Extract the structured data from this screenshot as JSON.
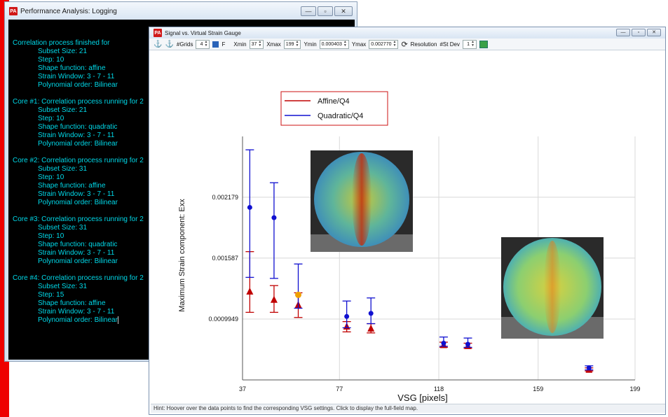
{
  "log_window": {
    "title": "Performance Analysis: Logging",
    "icon": "PA",
    "controls": [
      "minimize-icon",
      "maximize-icon",
      "close-icon"
    ],
    "blocks": [
      {
        "header": "Correlation process finished for",
        "lines": [
          "Subset Size: 21",
          "Step: 10",
          "Shape function: affine",
          "Strain Window: 3 - 7 - 11",
          "Polynomial order: Bilinear"
        ]
      },
      {
        "header": "Core #1: Correlation process running for 2",
        "lines": [
          "Subset Size: 21",
          "Step: 10",
          "Shape function: quadratic",
          "Strain Window: 3 - 7 - 11",
          "Polynomial order: Bilinear"
        ]
      },
      {
        "header": "Core #2: Correlation process running for 2",
        "lines": [
          "Subset Size: 31",
          "Step: 10",
          "Shape function: affine",
          "Strain Window: 3 - 7 - 11",
          "Polynomial order: Bilinear"
        ]
      },
      {
        "header": "Core #3: Correlation process running for 2",
        "lines": [
          "Subset Size: 31",
          "Step: 10",
          "Shape function: quadratic",
          "Strain Window: 3 - 7 - 11",
          "Polynomial order: Bilinear"
        ]
      },
      {
        "header": "Core #4: Correlation process running for 2",
        "lines": [
          "Subset Size: 31",
          "Step: 15",
          "Shape function: affine",
          "Strain Window: 3 - 7 - 11",
          "Polynomial order: Bilinear"
        ]
      }
    ]
  },
  "chart_window": {
    "title": "Signal vs. Virtual Strain Gauge",
    "icon": "PA",
    "toolbar": {
      "grids_label": "#Grids",
      "grids_value": "4",
      "f_label": "F",
      "xmin_label": "Xmin",
      "xmin_value": "37",
      "xmax_label": "Xmax",
      "xmax_value": "199",
      "ymin_label": "Ymin",
      "ymin_value": "0.000403",
      "ymax_label": "Ymax",
      "ymax_value": "0.002770",
      "resolution_label": "Resolution",
      "stdev_label": "#St Dev",
      "stdev_value": "1"
    },
    "hint": "Hint: Hoover over the data points to find the corresponding VSG settings. Click to display the full-field map."
  },
  "chart_data": {
    "type": "scatter",
    "xlabel": "VSG [pixels]",
    "ylabel": "Maximum Strain component: Exx",
    "xlim": [
      37,
      199
    ],
    "ylim": [
      0.000403,
      0.00277
    ],
    "x_ticks": [
      37,
      77,
      118,
      159,
      199
    ],
    "y_ticks": [
      0.0009949,
      0.001587,
      0.002179
    ],
    "y_tick_labels": [
      "0.0009949",
      "0.001587",
      "0.002179"
    ],
    "grid": true,
    "legend_position": "top-left",
    "series": [
      {
        "name": "Affine/Q4",
        "color": "#c00000",
        "marker": "triangle",
        "points": [
          {
            "x": 40,
            "y": 0.00126,
            "lo": 0.00106,
            "hi": 0.00165
          },
          {
            "x": 50,
            "y": 0.00118,
            "lo": 0.00106,
            "hi": 0.00132
          },
          {
            "x": 60,
            "y": 0.00113,
            "lo": 0.00101,
            "hi": 0.00125
          },
          {
            "x": 80,
            "y": 0.00092,
            "lo": 0.00087,
            "hi": 0.00097
          },
          {
            "x": 90,
            "y": 0.0009,
            "lo": 0.00086,
            "hi": 0.00095
          },
          {
            "x": 120,
            "y": 0.00074,
            "lo": 0.00072,
            "hi": 0.00077
          },
          {
            "x": 130,
            "y": 0.00073,
            "lo": 0.00071,
            "hi": 0.00076
          },
          {
            "x": 180,
            "y": 0.0005,
            "lo": 0.00049,
            "hi": 0.00052
          }
        ]
      },
      {
        "name": "Quadratic/Q4",
        "color": "#1010d0",
        "marker": "circle",
        "points": [
          {
            "x": 40,
            "y": 0.00208,
            "lo": 0.0014,
            "hi": 0.00264
          },
          {
            "x": 50,
            "y": 0.00198,
            "lo": 0.00139,
            "hi": 0.00232
          },
          {
            "x": 60,
            "y": 0.00123,
            "lo": 0.0011,
            "hi": 0.00153
          },
          {
            "x": 80,
            "y": 0.00102,
            "lo": 0.00091,
            "hi": 0.00117
          },
          {
            "x": 90,
            "y": 0.00105,
            "lo": 0.00095,
            "hi": 0.0012
          },
          {
            "x": 120,
            "y": 0.00076,
            "lo": 0.00073,
            "hi": 0.00082
          },
          {
            "x": 130,
            "y": 0.00075,
            "lo": 0.00072,
            "hi": 0.00081
          },
          {
            "x": 180,
            "y": 0.00052,
            "lo": 0.0005,
            "hi": 0.00054
          }
        ]
      }
    ],
    "highlight_color": "#f0a000"
  }
}
